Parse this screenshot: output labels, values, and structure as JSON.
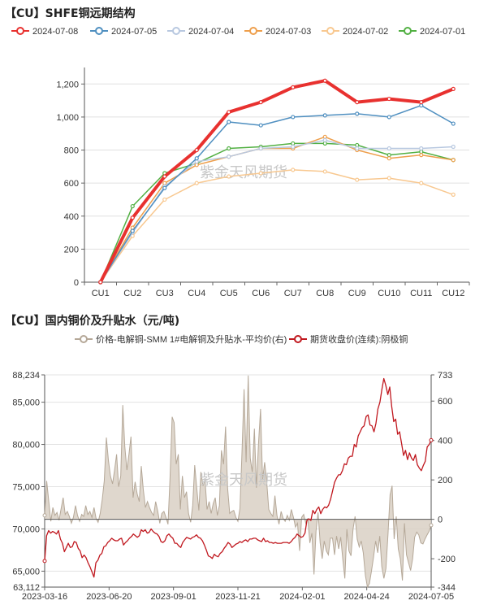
{
  "chart_data": [
    {
      "type": "line",
      "title": "【CU】SHFE铜远期结构",
      "watermark": "紫金天风期货",
      "categories": [
        "CU1",
        "CU2",
        "CU3",
        "CU4",
        "CU5",
        "CU6",
        "CU7",
        "CU8",
        "CU9",
        "CU10",
        "CU11",
        "CU12"
      ],
      "ylim": [
        0,
        1300
      ],
      "yticks": [
        0,
        200,
        400,
        600,
        800,
        1000,
        1200
      ],
      "ytick_labels": [
        "0",
        "200",
        "400",
        "600",
        "800",
        "1,000",
        "1,200"
      ],
      "legend_position": "top",
      "series": [
        {
          "name": "2024-07-08",
          "color": "#e8312f",
          "width": 4,
          "values": [
            0,
            390,
            640,
            800,
            1030,
            1090,
            1180,
            1220,
            1090,
            1110,
            1090,
            1170
          ]
        },
        {
          "name": "2024-07-05",
          "color": "#4f8fc0",
          "width": 1.5,
          "values": [
            0,
            310,
            570,
            750,
            970,
            950,
            1000,
            1010,
            1020,
            1000,
            1070,
            960
          ]
        },
        {
          "name": "2024-07-04",
          "color": "#b8c8e0",
          "width": 1.5,
          "values": [
            0,
            300,
            580,
            730,
            760,
            810,
            820,
            860,
            810,
            810,
            810,
            820
          ]
        },
        {
          "name": "2024-07-03",
          "color": "#ee9f4c",
          "width": 1.5,
          "values": [
            0,
            330,
            600,
            710,
            760,
            810,
            810,
            880,
            800,
            750,
            770,
            740
          ]
        },
        {
          "name": "2024-07-02",
          "color": "#f8c890",
          "width": 1.5,
          "values": [
            0,
            280,
            500,
            600,
            640,
            660,
            680,
            670,
            620,
            630,
            600,
            530
          ]
        },
        {
          "name": "2024-07-01",
          "color": "#52b043",
          "width": 1.5,
          "values": [
            0,
            460,
            660,
            720,
            810,
            820,
            840,
            840,
            830,
            770,
            790,
            740
          ]
        }
      ]
    },
    {
      "type": "line",
      "title": "【CU】国内铜价及升贴水（元/吨)",
      "watermark": "紫金天风期货",
      "legend_position": "top",
      "x_tick_labels": [
        "2023-03-16",
        "2023-06-20",
        "2023-09-01",
        "2023-11-21",
        "2024-02-01",
        "2024-04-24",
        "2024-07-05"
      ],
      "y_left": {
        "min": 63112,
        "max": 88234,
        "tick_labels": [
          "63,112",
          "65,000",
          "70,000",
          "75,000",
          "80,000",
          "85,000",
          "88,234"
        ],
        "tick_values": [
          63112,
          65000,
          70000,
          75000,
          80000,
          85000,
          88234
        ]
      },
      "y_right": {
        "min": -344,
        "max": 733,
        "tick_labels": [
          "-344",
          "-200",
          "0",
          "200",
          "400",
          "600",
          "733"
        ],
        "tick_values": [
          -344,
          -200,
          0,
          200,
          400,
          600,
          733
        ]
      },
      "series": [
        {
          "name": "价格-电解铜-SMM 1#电解铜及升贴水-平均价(右)",
          "axis": "right",
          "style": "area",
          "color": "#b5a898",
          "fill": "#d9d0c4",
          "values": [
            20,
            195,
            90,
            -10,
            60,
            20,
            35,
            -5,
            55,
            110,
            25,
            40,
            15,
            -20,
            10,
            70,
            20,
            -10,
            25,
            15,
            70,
            25,
            40,
            10,
            60,
            5,
            -15,
            30,
            100,
            195,
            415,
            300,
            220,
            180,
            250,
            330,
            165,
            220,
            580,
            370,
            250,
            330,
            420,
            110,
            190,
            130,
            90,
            270,
            150,
            60,
            90,
            60,
            35,
            20,
            90,
            40,
            -20,
            30,
            40,
            10,
            -25,
            210,
            520,
            490,
            280,
            330,
            50,
            220,
            110,
            140,
            30,
            -15,
            70,
            275,
            155,
            45,
            240,
            170,
            200,
            50,
            90,
            30,
            80,
            110,
            20,
            70,
            350,
            280,
            470,
            160,
            30,
            40,
            45,
            10,
            -10,
            55,
            350,
            660,
            290,
            730,
            310,
            240,
            460,
            160,
            380,
            560,
            200,
            290,
            195,
            50,
            30,
            15,
            120,
            20,
            -25,
            40,
            5,
            -10,
            20,
            -5,
            50,
            10,
            -40,
            -20,
            -160,
            10,
            25,
            -20,
            5,
            -120,
            -70,
            -280,
            -60,
            35,
            -120,
            -200,
            -110,
            -160,
            -180,
            -95,
            -95,
            -180,
            -85,
            -150,
            -90,
            -200,
            -300,
            -50,
            -160,
            -185,
            -50,
            15,
            -100,
            -140,
            -110,
            -170,
            -285,
            -344,
            -325,
            -260,
            -190,
            -110,
            -170,
            -85,
            -240,
            -300,
            -250,
            -80,
            125,
            170,
            -100,
            15,
            -150,
            -200,
            -310,
            -20,
            -180,
            -220,
            -260,
            -200,
            -90,
            -65,
            -80,
            -120,
            -125,
            -100,
            -80,
            -60,
            -30
          ]
        },
        {
          "name": "期货收盘价(连续):阴极铜",
          "axis": "left",
          "style": "line",
          "color": "#c0181f",
          "values": [
            66200,
            69200,
            69800,
            69500,
            69700,
            69600,
            69400,
            69800,
            68800,
            68300,
            67300,
            67800,
            68300,
            67800,
            67900,
            68500,
            68400,
            67700,
            67400,
            66600,
            66900,
            66600,
            66000,
            65500,
            64900,
            64300,
            66000,
            66300,
            66900,
            67100,
            67900,
            68000,
            68400,
            68600,
            68900,
            68700,
            68600,
            68600,
            68800,
            68900,
            68100,
            68400,
            68600,
            68900,
            69100,
            69400,
            69200,
            69000,
            69200,
            69900,
            69700,
            69900,
            69500,
            69600,
            70000,
            69700,
            69500,
            69400,
            69100,
            68500,
            68400,
            68600,
            69200,
            69400,
            69100,
            68900,
            68300,
            68300,
            68000,
            67800,
            68400,
            68700,
            69000,
            68900,
            68800,
            69000,
            69100,
            69300,
            69000,
            68900,
            68600,
            68100,
            67500,
            66800,
            66700,
            66500,
            67000,
            66800,
            66700,
            67100,
            67300,
            67700,
            68000,
            68400,
            68200,
            67800,
            68000,
            68200,
            68300,
            68500,
            68400,
            68600,
            68700,
            68500,
            68800,
            68800,
            68900,
            68900,
            68700,
            68600,
            68500,
            68900,
            68500,
            68600,
            68400,
            68400,
            68300,
            68400,
            68300,
            68300,
            68300,
            68400,
            68400,
            68400,
            68300,
            68500,
            68800,
            69000,
            69400,
            69200,
            69000,
            69100,
            69500,
            71000,
            71200,
            71000,
            72200,
            71800,
            72300,
            72600,
            71800,
            72300,
            72600,
            72500,
            72800,
            73500,
            74500,
            75500,
            76000,
            76400,
            76400,
            76900,
            77700,
            77600,
            78400,
            78600,
            78600,
            80000,
            79700,
            81000,
            81500,
            82000,
            82200,
            83300,
            83500,
            82300,
            82200,
            81500,
            82500,
            84200,
            85000,
            86500,
            87800,
            87000,
            85900,
            86800,
            84500,
            82700,
            83000,
            81200,
            81500,
            80100,
            78700,
            79300,
            78200,
            79000,
            78400,
            78100,
            78800,
            77600,
            77200,
            76900,
            77500,
            78000,
            79700,
            80000,
            80500
          ]
        }
      ]
    }
  ]
}
